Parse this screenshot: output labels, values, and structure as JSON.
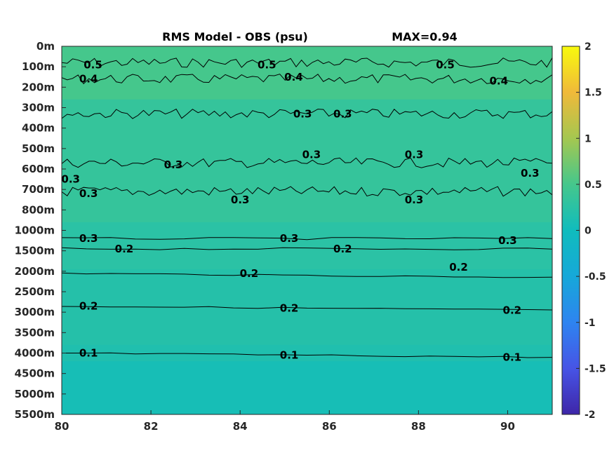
{
  "chart_data": {
    "type": "contour",
    "title": "RMS Model - OBS (psu)",
    "max_label": "MAX=0.94",
    "x_ticks": [
      "80",
      "82",
      "84",
      "86",
      "88",
      "90"
    ],
    "x_range": [
      80,
      91
    ],
    "y_ticks": [
      "0m",
      "100m",
      "200m",
      "300m",
      "400m",
      "500m",
      "600m",
      "700m",
      "800m",
      "1000m",
      "1500m",
      "2000m",
      "2500m",
      "3000m",
      "3500m",
      "4000m",
      "4500m",
      "5000m",
      "5500m"
    ],
    "colorbar": {
      "range": [
        -2,
        2
      ],
      "ticks": [
        "2",
        "1.5",
        "1",
        "0.5",
        "0",
        "-0.5",
        "-1",
        "-1.5",
        "-2"
      ],
      "colormap": "parula"
    },
    "depth_bands": [
      {
        "from": 0,
        "to": 2.6,
        "value": 0.5
      },
      {
        "from": 2.6,
        "to": 8.6,
        "value": 0.35
      },
      {
        "from": 8.6,
        "to": 10.9,
        "value": 0.25
      },
      {
        "from": 10.9,
        "to": 14.6,
        "value": 0.2
      },
      {
        "from": 14.6,
        "to": 15.4,
        "value": 0.15
      },
      {
        "from": 15.4,
        "to": 18,
        "value": 0.07
      }
    ],
    "contours": [
      {
        "level": "0.5",
        "y_index": 0.8,
        "labels": [
          {
            "x": 80.7,
            "y": 0.9
          },
          {
            "x": 84.6,
            "y": 0.9
          },
          {
            "x": 88.6,
            "y": 0.9
          }
        ]
      },
      {
        "level": "0.4",
        "y_index": 1.6,
        "labels": [
          {
            "x": 80.6,
            "y": 1.6
          },
          {
            "x": 85.2,
            "y": 1.5
          },
          {
            "x": 89.8,
            "y": 1.7
          }
        ]
      },
      {
        "level": "0.3",
        "y_index": 3.3,
        "labels": [
          {
            "x": 85.4,
            "y": 3.3
          },
          {
            "x": 86.3,
            "y": 3.3
          }
        ]
      },
      {
        "level": "0.3",
        "y_index": 5.7,
        "labels": [
          {
            "x": 82.5,
            "y": 5.8
          },
          {
            "x": 85.6,
            "y": 5.3
          },
          {
            "x": 87.9,
            "y": 5.3
          },
          {
            "x": 90.5,
            "y": 6.2
          }
        ]
      },
      {
        "level": "0.3",
        "y_index": 7.1,
        "labels": [
          {
            "x": 80.2,
            "y": 6.5
          },
          {
            "x": 80.6,
            "y": 7.2
          },
          {
            "x": 84.0,
            "y": 7.5
          },
          {
            "x": 87.9,
            "y": 7.5
          }
        ]
      },
      {
        "level": "0.3",
        "y_index": 9.4,
        "labels": [
          {
            "x": 80.6,
            "y": 9.4
          },
          {
            "x": 85.1,
            "y": 9.4
          },
          {
            "x": 90.0,
            "y": 9.5
          }
        ]
      },
      {
        "level": "0.2",
        "y_index": 9.9,
        "labels": [
          {
            "x": 81.4,
            "y": 9.9
          },
          {
            "x": 86.3,
            "y": 9.9
          },
          {
            "x": 88.9,
            "y": 10.8
          }
        ]
      },
      {
        "level": "0.2",
        "y_index": 11.1,
        "labels": [
          {
            "x": 84.2,
            "y": 11.1
          }
        ]
      },
      {
        "level": "0.2",
        "y_index": 12.7,
        "labels": [
          {
            "x": 80.6,
            "y": 12.7
          },
          {
            "x": 85.1,
            "y": 12.8
          },
          {
            "x": 90.1,
            "y": 12.9
          }
        ]
      },
      {
        "level": "0.1",
        "y_index": 15.0,
        "labels": [
          {
            "x": 80.6,
            "y": 15.0
          },
          {
            "x": 85.1,
            "y": 15.1
          },
          {
            "x": 90.1,
            "y": 15.2
          }
        ]
      }
    ]
  }
}
